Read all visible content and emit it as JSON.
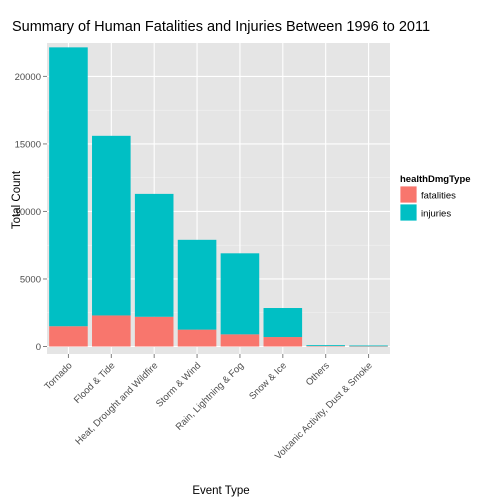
{
  "chart_data": {
    "type": "bar",
    "stacked": true,
    "title": "Summary of Human Fatalities and Injuries Between 1996 to 2011",
    "xlabel": "Event Type",
    "ylabel": "Total Count",
    "ylim": [
      0,
      23500
    ],
    "yticks": [
      0,
      5000,
      10000,
      15000,
      20000
    ],
    "grid": true,
    "legend_position": "right",
    "legend_title": "healthDmgType",
    "categories": [
      "Tornado",
      "Flood & Tide",
      "Heat, Drought and Wildfire",
      "Storm & Wind",
      "Rain, Lightning & Fog",
      "Snow & Ice",
      "Others",
      "Volcanic Activity, Dust & Smoke"
    ],
    "series": [
      {
        "name": "fatalities",
        "color": "#F8766D",
        "values": [
          1500,
          2300,
          2200,
          1250,
          900,
          700,
          30,
          15
        ]
      },
      {
        "name": "injuries",
        "color": "#00BFC4",
        "values": [
          20650,
          13300,
          9100,
          6650,
          6000,
          2150,
          70,
          60
        ]
      }
    ]
  }
}
